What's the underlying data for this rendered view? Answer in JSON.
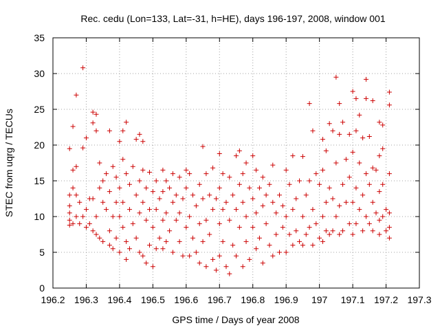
{
  "chart_data": {
    "type": "scatter",
    "title": "Rec. cedu (Lon=133, Lat=-31, h=HE), days 196-197, 2008, window 001",
    "xlabel": "GPS time / Days of year 2008",
    "ylabel": "STEC from uqrg / TECUs",
    "xlim": [
      196.2,
      197.3
    ],
    "ylim": [
      0,
      35
    ],
    "xticks": [
      "196.2",
      "196.3",
      "196.4",
      "196.5",
      "196.6",
      "196.7",
      "196.8",
      "196.9",
      "197",
      "197.1",
      "197.2",
      "197.3"
    ],
    "yticks": [
      "0",
      "5",
      "10",
      "15",
      "20",
      "25",
      "30",
      "35"
    ],
    "grid": true,
    "marker": "+",
    "series": [
      {
        "color": "#cc0000",
        "points": [
          [
            196.25,
            19.5
          ],
          [
            196.25,
            13
          ],
          [
            196.25,
            11.5
          ],
          [
            196.25,
            10.5
          ],
          [
            196.25,
            9.5
          ],
          [
            196.25,
            8.8
          ],
          [
            196.26,
            22.6
          ],
          [
            196.26,
            16.5
          ],
          [
            196.26,
            14
          ],
          [
            196.26,
            9
          ],
          [
            196.27,
            27
          ],
          [
            196.27,
            17
          ],
          [
            196.27,
            13
          ],
          [
            196.27,
            10
          ],
          [
            196.28,
            12
          ],
          [
            196.28,
            9
          ],
          [
            196.29,
            30.8
          ],
          [
            196.29,
            19.6
          ],
          [
            196.29,
            10
          ],
          [
            196.3,
            21
          ],
          [
            196.3,
            11
          ],
          [
            196.3,
            8.5
          ],
          [
            196.31,
            12.5
          ],
          [
            196.31,
            9
          ],
          [
            196.32,
            24.6
          ],
          [
            196.32,
            23.1
          ],
          [
            196.32,
            12.5
          ],
          [
            196.32,
            8
          ],
          [
            196.33,
            24.3
          ],
          [
            196.33,
            22
          ],
          [
            196.33,
            10
          ],
          [
            196.33,
            7.5
          ],
          [
            196.34,
            17.5
          ],
          [
            196.34,
            14
          ],
          [
            196.34,
            7
          ],
          [
            196.35,
            15
          ],
          [
            196.35,
            12
          ],
          [
            196.35,
            6.5
          ],
          [
            196.36,
            16
          ],
          [
            196.36,
            11
          ],
          [
            196.37,
            22
          ],
          [
            196.37,
            13.5
          ],
          [
            196.37,
            8
          ],
          [
            196.37,
            6
          ],
          [
            196.38,
            17
          ],
          [
            196.38,
            10
          ],
          [
            196.38,
            5.5
          ],
          [
            196.39,
            15.5
          ],
          [
            196.39,
            12
          ],
          [
            196.39,
            7
          ],
          [
            196.4,
            20.5
          ],
          [
            196.4,
            14
          ],
          [
            196.4,
            10
          ],
          [
            196.4,
            5
          ],
          [
            196.41,
            22
          ],
          [
            196.41,
            18
          ],
          [
            196.41,
            12
          ],
          [
            196.41,
            8.5
          ],
          [
            196.42,
            23.2
          ],
          [
            196.42,
            16
          ],
          [
            196.42,
            6.5
          ],
          [
            196.42,
            4
          ],
          [
            196.43,
            14.5
          ],
          [
            196.43,
            11
          ],
          [
            196.43,
            5.5
          ],
          [
            196.44,
            17
          ],
          [
            196.44,
            9
          ],
          [
            196.45,
            20.8
          ],
          [
            196.45,
            13
          ],
          [
            196.45,
            7
          ],
          [
            196.46,
            21.5
          ],
          [
            196.46,
            15
          ],
          [
            196.46,
            10.5
          ],
          [
            196.46,
            5
          ],
          [
            196.47,
            20.5
          ],
          [
            196.47,
            16.5
          ],
          [
            196.47,
            12
          ],
          [
            196.47,
            4.5
          ],
          [
            196.48,
            14
          ],
          [
            196.48,
            9.5
          ],
          [
            196.48,
            3.5
          ],
          [
            196.49,
            16.2
          ],
          [
            196.49,
            11
          ],
          [
            196.49,
            6
          ],
          [
            196.5,
            13.5
          ],
          [
            196.5,
            8.5
          ],
          [
            196.5,
            3
          ],
          [
            196.51,
            15
          ],
          [
            196.51,
            11
          ],
          [
            196.51,
            5.5
          ],
          [
            196.52,
            12.5
          ],
          [
            196.52,
            7
          ],
          [
            196.53,
            16.5
          ],
          [
            196.53,
            13.5
          ],
          [
            196.53,
            9.5
          ],
          [
            196.53,
            5.5
          ],
          [
            196.54,
            15
          ],
          [
            196.54,
            10.5
          ],
          [
            196.54,
            6.5
          ],
          [
            196.55,
            14
          ],
          [
            196.55,
            8
          ],
          [
            196.56,
            16
          ],
          [
            196.56,
            12
          ],
          [
            196.56,
            5
          ],
          [
            196.57,
            13
          ],
          [
            196.57,
            9.5
          ],
          [
            196.58,
            15.5
          ],
          [
            196.58,
            10.5
          ],
          [
            196.58,
            6.5
          ],
          [
            196.59,
            12.5
          ],
          [
            196.59,
            4.5
          ],
          [
            196.6,
            16.5
          ],
          [
            196.6,
            14
          ],
          [
            196.6,
            8.5
          ],
          [
            196.61,
            16
          ],
          [
            196.61,
            10
          ],
          [
            196.61,
            4.5
          ],
          [
            196.62,
            13
          ],
          [
            196.62,
            7
          ],
          [
            196.63,
            11.5
          ],
          [
            196.63,
            5
          ],
          [
            196.64,
            14.5
          ],
          [
            196.64,
            9
          ],
          [
            196.64,
            3.5
          ],
          [
            196.65,
            19.8
          ],
          [
            196.65,
            12.5
          ],
          [
            196.65,
            6.5
          ],
          [
            196.66,
            16
          ],
          [
            196.66,
            9.5
          ],
          [
            196.66,
            3
          ],
          [
            196.67,
            13
          ],
          [
            196.67,
            7.5
          ],
          [
            196.68,
            16.8
          ],
          [
            196.68,
            11
          ],
          [
            196.68,
            4
          ],
          [
            196.69,
            12.5
          ],
          [
            196.69,
            2.5
          ],
          [
            196.7,
            18.8
          ],
          [
            196.7,
            14
          ],
          [
            196.7,
            9
          ],
          [
            196.7,
            4.5
          ],
          [
            196.71,
            16
          ],
          [
            196.71,
            11
          ],
          [
            196.71,
            6.5
          ],
          [
            196.72,
            12
          ],
          [
            196.72,
            3
          ],
          [
            196.73,
            15.5
          ],
          [
            196.73,
            9.5
          ],
          [
            196.73,
            2
          ],
          [
            196.74,
            13
          ],
          [
            196.74,
            6
          ],
          [
            196.75,
            18.5
          ],
          [
            196.75,
            11
          ],
          [
            196.75,
            4.5
          ],
          [
            196.76,
            19.2
          ],
          [
            196.76,
            14.5
          ],
          [
            196.76,
            8.5
          ],
          [
            196.77,
            16
          ],
          [
            196.77,
            12
          ],
          [
            196.77,
            3
          ],
          [
            196.78,
            17.5
          ],
          [
            196.78,
            10
          ],
          [
            196.78,
            6.5
          ],
          [
            196.79,
            14
          ],
          [
            196.79,
            4
          ],
          [
            196.8,
            18.5
          ],
          [
            196.8,
            12.5
          ],
          [
            196.8,
            8.5
          ],
          [
            196.81,
            16.5
          ],
          [
            196.81,
            10.5
          ],
          [
            196.81,
            5.5
          ],
          [
            196.82,
            14
          ],
          [
            196.82,
            7
          ],
          [
            196.83,
            15.5
          ],
          [
            196.83,
            11.5
          ],
          [
            196.83,
            3.5
          ],
          [
            196.84,
            13
          ],
          [
            196.84,
            9
          ],
          [
            196.85,
            14.5
          ],
          [
            196.85,
            6
          ],
          [
            196.86,
            17.2
          ],
          [
            196.86,
            12
          ],
          [
            196.86,
            4.5
          ],
          [
            196.87,
            10.5
          ],
          [
            196.87,
            7.5
          ],
          [
            196.88,
            13
          ],
          [
            196.88,
            5
          ],
          [
            196.89,
            11.5
          ],
          [
            196.89,
            8.5
          ],
          [
            196.9,
            16.5
          ],
          [
            196.9,
            10
          ],
          [
            196.9,
            5
          ],
          [
            196.91,
            14.5
          ],
          [
            196.91,
            7.5
          ],
          [
            196.92,
            18.5
          ],
          [
            196.92,
            11
          ],
          [
            196.92,
            6
          ],
          [
            196.93,
            12.5
          ],
          [
            196.93,
            8
          ],
          [
            196.94,
            15
          ],
          [
            196.94,
            6.5
          ],
          [
            196.95,
            18.4
          ],
          [
            196.95,
            10
          ],
          [
            196.95,
            6
          ],
          [
            196.96,
            13
          ],
          [
            196.96,
            7.5
          ],
          [
            196.97,
            25.8
          ],
          [
            196.97,
            15
          ],
          [
            196.97,
            8.5
          ],
          [
            196.98,
            22
          ],
          [
            196.98,
            11
          ],
          [
            196.98,
            6
          ],
          [
            196.99,
            16
          ],
          [
            196.99,
            9
          ],
          [
            197,
            14.5
          ],
          [
            197,
            7
          ],
          [
            197.01,
            20.8
          ],
          [
            197.01,
            16.5
          ],
          [
            197.01,
            10
          ],
          [
            197.01,
            6.5
          ],
          [
            197.02,
            19.2
          ],
          [
            197.02,
            12
          ],
          [
            197.02,
            8
          ],
          [
            197.03,
            23
          ],
          [
            197.03,
            14
          ],
          [
            197.03,
            7.5
          ],
          [
            197.04,
            22
          ],
          [
            197.04,
            12.5
          ],
          [
            197.04,
            8
          ],
          [
            197.05,
            29.5
          ],
          [
            197.05,
            17.5
          ],
          [
            197.05,
            10
          ],
          [
            197.06,
            25.8
          ],
          [
            197.06,
            21.5
          ],
          [
            197.06,
            11.5
          ],
          [
            197.06,
            7.5
          ],
          [
            197.07,
            23.2
          ],
          [
            197.07,
            14.5
          ],
          [
            197.07,
            8
          ],
          [
            197.08,
            18
          ],
          [
            197.08,
            12
          ],
          [
            197.09,
            21.5
          ],
          [
            197.09,
            15.5
          ],
          [
            197.09,
            9
          ],
          [
            197.1,
            27.5
          ],
          [
            197.1,
            19
          ],
          [
            197.1,
            12
          ],
          [
            197.1,
            7.5
          ],
          [
            197.11,
            26.5
          ],
          [
            197.11,
            22
          ],
          [
            197.11,
            14
          ],
          [
            197.11,
            9
          ],
          [
            197.12,
            24.2
          ],
          [
            197.12,
            17.5
          ],
          [
            197.12,
            11
          ],
          [
            197.13,
            21
          ],
          [
            197.13,
            13
          ],
          [
            197.13,
            8
          ],
          [
            197.14,
            29.2
          ],
          [
            197.14,
            26.5
          ],
          [
            197.14,
            16
          ],
          [
            197.14,
            10
          ],
          [
            197.15,
            21.2
          ],
          [
            197.15,
            14.5
          ],
          [
            197.15,
            9
          ],
          [
            197.16,
            26.2
          ],
          [
            197.16,
            16.8
          ],
          [
            197.16,
            12
          ],
          [
            197.16,
            8
          ],
          [
            197.17,
            16.5
          ],
          [
            197.17,
            10.5
          ],
          [
            197.18,
            23.2
          ],
          [
            197.18,
            18.5
          ],
          [
            197.18,
            13.5
          ],
          [
            197.18,
            9.5
          ],
          [
            197.18,
            7.5
          ],
          [
            197.19,
            22.8
          ],
          [
            197.19,
            19.5
          ],
          [
            197.19,
            14.5
          ],
          [
            197.19,
            10
          ],
          [
            197.2,
            11
          ],
          [
            197.2,
            8
          ],
          [
            197.21,
            27.4
          ],
          [
            197.21,
            25.6
          ],
          [
            197.21,
            16
          ],
          [
            197.21,
            10.5
          ],
          [
            197.21,
            8.5
          ],
          [
            197.21,
            7
          ]
        ]
      }
    ]
  }
}
